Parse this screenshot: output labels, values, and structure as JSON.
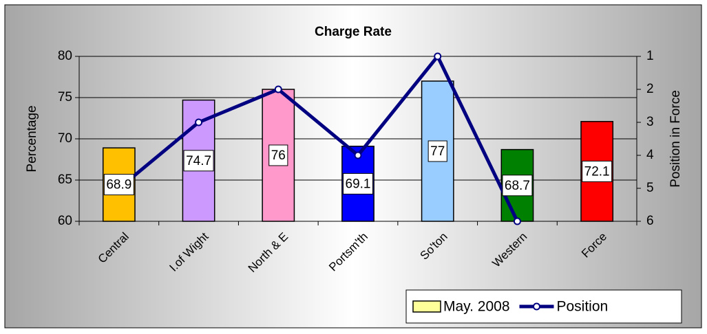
{
  "chart_data": {
    "type": "bar",
    "title": "Charge Rate",
    "y_label": "Percentage",
    "y2_label": "Position in Force",
    "categories": [
      "Central",
      "I.of Wight",
      "North & E",
      "Portsm'th",
      "So'ton",
      "Western",
      "Force"
    ],
    "series": [
      {
        "name": "May. 2008",
        "type": "bar",
        "color": "#ffff99",
        "colors": [
          "#ffc000",
          "#cc99ff",
          "#ff99cc",
          "#0000ff",
          "#99ccff",
          "#008000",
          "#ff0000"
        ],
        "values": [
          68.9,
          74.7,
          76,
          69.1,
          77,
          68.7,
          72.1
        ]
      },
      {
        "name": "Position",
        "type": "line",
        "axis": "y2",
        "color": "#000080",
        "values": [
          5,
          3,
          2,
          4,
          1,
          6,
          null
        ]
      }
    ],
    "ylim": [
      60,
      80
    ],
    "yticks": [
      60,
      65,
      70,
      75,
      80
    ],
    "y2lim": [
      1,
      6
    ],
    "y2ticks": [
      1,
      2,
      3,
      4,
      5,
      6
    ],
    "y2_reversed": true,
    "grid": true,
    "legend": "bottom-right"
  }
}
